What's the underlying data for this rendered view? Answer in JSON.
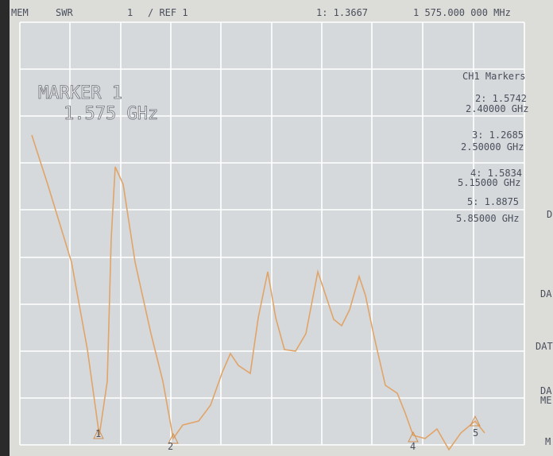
{
  "header": {
    "mode": "MEM",
    "format": "SWR",
    "scale": "1",
    "reference": "/ REF 1",
    "marker_value": "1: 1.3667",
    "marker_frequency": "1 575.000 000 MHz"
  },
  "marker_box": {
    "title": "MARKER 1",
    "frequency": "1.575 GHz"
  },
  "marker_list": {
    "title": "CH1 Markers",
    "items": [
      {
        "value": "2: 1.5742",
        "frequency": "2.40000 GHz"
      },
      {
        "value": "3: 1.2685",
        "frequency": "2.50000 GHz"
      },
      {
        "value": "4: 1.5834",
        "frequency": "5.15000 GHz"
      },
      {
        "value": "5: 1.8875",
        "frequency": "5.85000 GHz"
      }
    ]
  },
  "softkeys": [
    "D",
    "DA",
    "DAT",
    "DA",
    "ME",
    "M"
  ],
  "trace_markers": [
    "1",
    "2",
    "4",
    "5"
  ]
}
